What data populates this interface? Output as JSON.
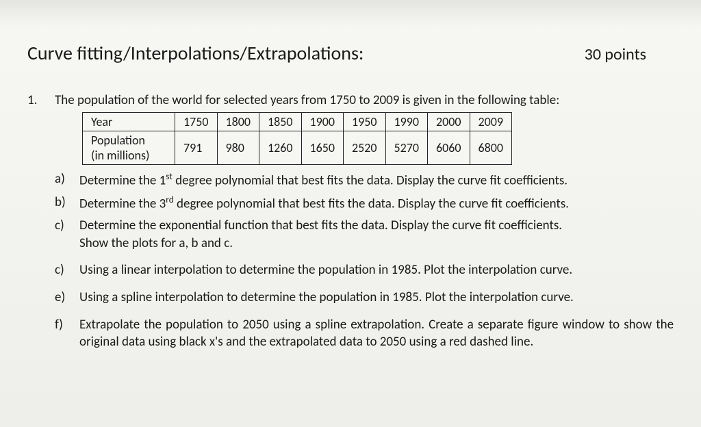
{
  "header": {
    "title": "Curve fitting/Interpolations/Extrapolations:",
    "points": "30 points"
  },
  "problem": {
    "number": "1.",
    "intro": "The population of the world for selected years from 1750 to 2009 is given in the following table:",
    "table": {
      "row1_label": "Year",
      "row2_label_line1": "Population",
      "row2_label_line2": "(in millions)",
      "cols": [
        "1750",
        "1800",
        "1850",
        "1900",
        "1950",
        "1990",
        "2000",
        "2009"
      ],
      "vals": [
        "791",
        "980",
        "1260",
        "1650",
        "2520",
        "5270",
        "6060",
        "6800"
      ]
    },
    "subs": {
      "a": {
        "label": "a)",
        "text_pre": "Determine the 1",
        "sup": "st",
        "text_post": " degree polynomial that best fits the data.  Display the curve fit coefficients."
      },
      "b": {
        "label": "b)",
        "text_pre": "Determine the 3",
        "sup": "rd",
        "text_post": " degree polynomial that best fits the data.  Display the curve fit coefficients."
      },
      "c": {
        "label": "c)",
        "line1": "Determine the exponential function that best fits the data.  Display the curve fit coefficients.",
        "line2": "Show the plots for a, b and c."
      },
      "d": {
        "label": "c)",
        "text": "Using a linear interpolation to determine the population in 1985. Plot the interpolation curve."
      },
      "e": {
        "label": "e)",
        "text": "Using a spline interpolation to determine the population in 1985. Plot the interpolation curve."
      },
      "f": {
        "label": "f)",
        "line1": "Extrapolate the population to 2050 using a spline extrapolation.  Create a separate figure window",
        "line2": "to show the original data using black x's and the extrapolated data to 2050 using a red dashed line."
      }
    }
  },
  "style": {
    "background_color": "#f2f2ee",
    "text_color": "#1a1a1a",
    "title_fontsize": 28,
    "body_fontsize": 19,
    "table_border_color": "#222222"
  }
}
